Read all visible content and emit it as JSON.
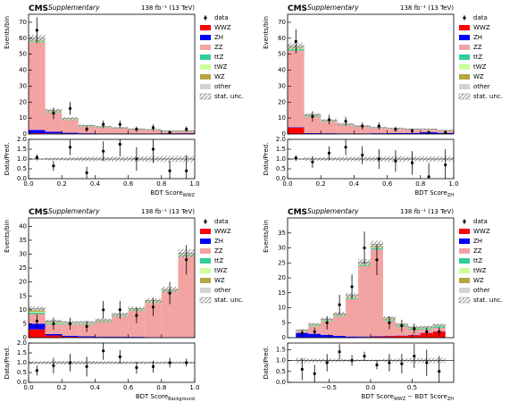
{
  "chart_data": [
    {
      "type": "histogram",
      "title": "CMS",
      "subtitle": "Supplementary",
      "lumi": "138 fb⁻¹ (13 TeV)",
      "xlabel": [
        "BDT Score",
        "WWZ"
      ],
      "ylabel": "Events/bin",
      "bins": [
        0,
        0.1,
        0.2,
        0.3,
        0.4,
        0.5,
        0.6,
        0.7,
        0.8,
        0.9,
        1.0
      ],
      "xlim": [
        0,
        1
      ],
      "xticks": [
        {
          "value": 0,
          "label": "0.0"
        },
        0.2,
        0.4,
        0.6,
        0.8,
        {
          "value": 1,
          "label": "1.0"
        }
      ],
      "ylim": [
        0,
        75
      ],
      "yticks": [
        0,
        10,
        20,
        30,
        40,
        50,
        60,
        70
      ],
      "series": [
        {
          "name": "WWZ",
          "color": "#ff0000",
          "values": [
            0.5,
            0.4,
            0.3,
            0.2,
            0.2,
            0.2,
            0.2,
            0.2,
            0.3,
            0.4
          ]
        },
        {
          "name": "ZH",
          "color": "#0000ff",
          "values": [
            2,
            1,
            0.5,
            0.3,
            0.2,
            0.2,
            0.2,
            0.2,
            0.2,
            0.2
          ]
        },
        {
          "name": "ZZ",
          "color": "#f4a3a3",
          "values": [
            55,
            12,
            8,
            4,
            3.5,
            3,
            2.3,
            2,
            1,
            1
          ]
        },
        {
          "name": "ttZ",
          "color": "#33cc99",
          "values": [
            0.5,
            0.3,
            0.2,
            0.2,
            0.2,
            0.1,
            0.1,
            0.1,
            0.1,
            0.1
          ]
        },
        {
          "name": "tWZ",
          "color": "#ccff99",
          "values": [
            0.3,
            0.2,
            0.1,
            0.1,
            0.1,
            0.1,
            0.1,
            0.1,
            0.1,
            0.1
          ]
        },
        {
          "name": "WZ",
          "color": "#b5a642",
          "values": [
            0.8,
            0.4,
            0.3,
            0.2,
            0.2,
            0.1,
            0.1,
            0.1,
            0.1,
            0.1
          ]
        },
        {
          "name": "other",
          "color": "#d3d3d3",
          "values": [
            1,
            0.6,
            0.4,
            0.3,
            0.2,
            0.2,
            0.1,
            0.1,
            0.1,
            0.1
          ]
        }
      ],
      "unc": {
        "name": "stat. unc.",
        "values": [
          2,
          1,
          0.8,
          0.6,
          0.5,
          0.5,
          0.4,
          0.4,
          0.3,
          0.3
        ]
      },
      "data": {
        "name": "data",
        "values": [
          65,
          13,
          16,
          3,
          6,
          6,
          3,
          4,
          1,
          3
        ],
        "errors": [
          8,
          3.6,
          4,
          1.7,
          2.4,
          2.4,
          1.7,
          2,
          1,
          1.7
        ]
      },
      "ratio": {
        "ylabel": "Data/Pred.",
        "ylim": [
          0,
          2
        ],
        "yticks": [
          {
            "value": 0,
            "label": "0.0"
          },
          0.5,
          {
            "value": 1,
            "label": "1.0"
          },
          1.5,
          {
            "value": 2,
            "label": "2.0"
          }
        ],
        "reference": 1,
        "values": [
          1.08,
          0.65,
          1.6,
          0.3,
          1.4,
          1.75,
          1.0,
          1.5,
          0.4,
          0.4
        ],
        "errors": [
          0.15,
          0.25,
          0.4,
          0.3,
          0.5,
          0.6,
          0.6,
          0.7,
          0.5,
          0.8
        ]
      }
    },
    {
      "type": "histogram",
      "title": "CMS",
      "subtitle": "Supplementary",
      "lumi": "138 fb⁻¹ (13 TeV)",
      "xlabel": [
        "BDT Score",
        "ZH"
      ],
      "ylabel": "Events/bin",
      "bins": [
        0,
        0.1,
        0.2,
        0.3,
        0.4,
        0.5,
        0.6,
        0.7,
        0.8,
        0.9,
        1.0
      ],
      "xlim": [
        0,
        1
      ],
      "xticks": [
        {
          "value": 0,
          "label": "0.0"
        },
        0.2,
        0.4,
        0.6,
        0.8,
        {
          "value": 1,
          "label": "1.0"
        }
      ],
      "ylim": [
        0,
        75
      ],
      "yticks": [
        0,
        10,
        20,
        30,
        40,
        50,
        60,
        70
      ],
      "series": [
        {
          "name": "WWZ",
          "color": "#ff0000",
          "values": [
            4,
            0.3,
            0.2,
            0.1,
            0.1,
            0.1,
            0.1,
            0.1,
            0.1,
            0.1
          ]
        },
        {
          "name": "ZH",
          "color": "#0000ff",
          "values": [
            0.3,
            0.3,
            0.3,
            0.3,
            0.3,
            0.4,
            0.5,
            0.6,
            1,
            0.6
          ]
        },
        {
          "name": "ZZ",
          "color": "#f4a3a3",
          "values": [
            48,
            10,
            7,
            5,
            4,
            3,
            2.5,
            2,
            1.5,
            1.2
          ]
        },
        {
          "name": "ttZ",
          "color": "#33cc99",
          "values": [
            0.8,
            0.3,
            0.2,
            0.2,
            0.1,
            0.1,
            0.1,
            0.1,
            0.1,
            0.1
          ]
        },
        {
          "name": "tWZ",
          "color": "#ccff99",
          "values": [
            0.5,
            0.2,
            0.1,
            0.1,
            0.1,
            0.1,
            0.1,
            0.1,
            0.1,
            0.1
          ]
        },
        {
          "name": "WZ",
          "color": "#b5a642",
          "values": [
            0.7,
            0.4,
            0.3,
            0.2,
            0.2,
            0.1,
            0.1,
            0.1,
            0.1,
            0.1
          ]
        },
        {
          "name": "other",
          "color": "#d3d3d3",
          "values": [
            0.9,
            0.5,
            0.4,
            0.3,
            0.2,
            0.2,
            0.1,
            0.1,
            0.1,
            0.1
          ]
        }
      ],
      "unc": {
        "name": "stat. unc.",
        "values": [
          2,
          1,
          0.8,
          0.7,
          0.6,
          0.5,
          0.5,
          0.4,
          0.4,
          0.3
        ]
      },
      "data": {
        "name": "data",
        "values": [
          58,
          11,
          9,
          8,
          5,
          5,
          3,
          2,
          1,
          1
        ],
        "errors": [
          7.6,
          3.3,
          3,
          2.8,
          2.2,
          2.2,
          1.7,
          1.4,
          1,
          1
        ]
      },
      "ratio": {
        "ylabel": "Data/Pred.",
        "ylim": [
          0,
          2
        ],
        "yticks": [
          {
            "value": 0,
            "label": "0.0"
          },
          0.5,
          {
            "value": 1,
            "label": "1.0"
          },
          1.5,
          {
            "value": 2,
            "label": "2.0"
          }
        ],
        "reference": 1,
        "values": [
          1.05,
          0.85,
          1.3,
          1.6,
          1.2,
          1.0,
          0.9,
          0.8,
          0.1,
          0.7
        ],
        "errors": [
          0.15,
          0.3,
          0.35,
          0.4,
          0.45,
          0.5,
          0.55,
          0.6,
          0.7,
          0.8
        ]
      }
    },
    {
      "type": "histogram",
      "title": "CMS",
      "subtitle": "Supplementary",
      "lumi": "138 fb⁻¹ (13 TeV)",
      "xlabel": [
        "BDT Score",
        "Background"
      ],
      "ylabel": "Events/bin",
      "bins": [
        0,
        0.1,
        0.2,
        0.3,
        0.4,
        0.5,
        0.6,
        0.7,
        0.8,
        0.9,
        1.0
      ],
      "xlim": [
        0,
        1
      ],
      "xticks": [
        {
          "value": 0,
          "label": "0.0"
        },
        0.2,
        0.4,
        0.6,
        0.8,
        {
          "value": 1,
          "label": "1.0"
        }
      ],
      "ylim": [
        0,
        43
      ],
      "yticks": [
        0,
        5,
        10,
        15,
        20,
        25,
        30,
        35,
        40
      ],
      "series": [
        {
          "name": "WWZ",
          "color": "#ff0000",
          "values": [
            3,
            0.8,
            0.3,
            0.2,
            0.2,
            0.2,
            0.1,
            0.1,
            0.1,
            0.1
          ]
        },
        {
          "name": "ZH",
          "color": "#0000ff",
          "values": [
            2,
            0.5,
            0.4,
            0.3,
            0.2,
            0.2,
            0.2,
            0.1,
            0.1,
            0.1
          ]
        },
        {
          "name": "ZZ",
          "color": "#f4a3a3",
          "values": [
            3.5,
            3.5,
            4,
            4.2,
            5.2,
            7.2,
            9.3,
            12.3,
            16.3,
            29
          ]
        },
        {
          "name": "ttZ",
          "color": "#33cc99",
          "values": [
            0.5,
            0.3,
            0.2,
            0.2,
            0.2,
            0.2,
            0.2,
            0.2,
            0.2,
            0.3
          ]
        },
        {
          "name": "tWZ",
          "color": "#ccff99",
          "values": [
            0.3,
            0.2,
            0.1,
            0.1,
            0.1,
            0.1,
            0.1,
            0.1,
            0.1,
            0.1
          ]
        },
        {
          "name": "WZ",
          "color": "#b5a642",
          "values": [
            0.5,
            0.3,
            0.2,
            0.2,
            0.2,
            0.2,
            0.2,
            0.2,
            0.2,
            0.3
          ]
        },
        {
          "name": "other",
          "color": "#d3d3d3",
          "values": [
            0.6,
            0.4,
            0.3,
            0.3,
            0.3,
            0.3,
            0.3,
            0.3,
            0.3,
            0.4
          ]
        }
      ],
      "unc": {
        "name": "stat. unc.",
        "values": [
          0.8,
          0.5,
          0.5,
          0.5,
          0.5,
          0.6,
          0.7,
          0.8,
          1,
          1.5
        ]
      },
      "data": {
        "name": "data",
        "values": [
          6,
          5,
          5,
          4,
          10,
          10,
          8,
          11,
          16,
          28
        ],
        "errors": [
          2.4,
          2.2,
          2.2,
          2,
          3.2,
          3.2,
          2.8,
          3.3,
          4,
          5.3
        ]
      },
      "ratio": {
        "ylabel": "Data/Pred.",
        "ylim": [
          0,
          2
        ],
        "yticks": [
          {
            "value": 0,
            "label": "0.0"
          },
          0.5,
          {
            "value": 1,
            "label": "1.0"
          },
          1.5,
          {
            "value": 2,
            "label": "2.0"
          }
        ],
        "reference": 1,
        "values": [
          0.6,
          0.85,
          1.0,
          0.8,
          1.6,
          1.3,
          0.75,
          0.8,
          1.0,
          1.0
        ],
        "errors": [
          0.25,
          0.4,
          0.45,
          0.5,
          0.45,
          0.35,
          0.3,
          0.3,
          0.25,
          0.2
        ]
      }
    },
    {
      "type": "histogram",
      "title": "CMS",
      "subtitle": "Supplementary",
      "lumi": "138 fb⁻¹ (13 TeV)",
      "xlabel": [
        "BDT Score",
        "WWZ",
        " − BDT Score",
        "ZH"
      ],
      "ylabel": "Events/bin",
      "bins": [
        -0.9,
        -0.75,
        -0.6,
        -0.45,
        -0.3,
        -0.15,
        0,
        0.15,
        0.3,
        0.45,
        0.6,
        0.75,
        0.9
      ],
      "xlim": [
        -1,
        1
      ],
      "xticks": [
        {
          "value": -0.5,
          "label": "−0.5"
        },
        {
          "value": 0,
          "label": "0.0"
        },
        0.5
      ],
      "ylim": [
        0,
        40
      ],
      "yticks": [
        0,
        5,
        10,
        15,
        20,
        25,
        30,
        35
      ],
      "series": [
        {
          "name": "WWZ",
          "color": "#ff0000",
          "values": [
            0.1,
            0.1,
            0.1,
            0.1,
            0.1,
            0.2,
            0.3,
            0.5,
            0.6,
            0.8,
            1.5,
            2
          ]
        },
        {
          "name": "ZH",
          "color": "#0000ff",
          "values": [
            1.5,
            1.2,
            0.8,
            0.5,
            0.3,
            0.2,
            0.2,
            0.1,
            0.1,
            0.1,
            0.1,
            0.1
          ]
        },
        {
          "name": "ZZ",
          "color": "#f4a3a3",
          "values": [
            0.5,
            2.5,
            4.5,
            6.5,
            12.5,
            23.5,
            29,
            5,
            3,
            1.8,
            1.2,
            1.2
          ]
        },
        {
          "name": "ttZ",
          "color": "#33cc99",
          "values": [
            0.1,
            0.2,
            0.2,
            0.2,
            0.3,
            0.3,
            0.4,
            0.3,
            0.3,
            0.3,
            0.3,
            0.4
          ]
        },
        {
          "name": "tWZ",
          "color": "#ccff99",
          "values": [
            0.1,
            0.1,
            0.1,
            0.1,
            0.2,
            0.2,
            0.2,
            0.1,
            0.1,
            0.1,
            0.1,
            0.1
          ]
        },
        {
          "name": "WZ",
          "color": "#b5a642",
          "values": [
            0.1,
            0.2,
            0.2,
            0.3,
            0.3,
            0.4,
            0.5,
            0.3,
            0.2,
            0.2,
            0.2,
            0.2
          ]
        },
        {
          "name": "other",
          "color": "#d3d3d3",
          "values": [
            0.1,
            0.2,
            0.3,
            0.3,
            0.4,
            0.5,
            0.6,
            0.3,
            0.2,
            0.2,
            0.2,
            0.2
          ]
        }
      ],
      "unc": {
        "name": "stat. unc.",
        "values": [
          0.3,
          0.4,
          0.5,
          0.6,
          0.8,
          1,
          1.2,
          0.5,
          0.4,
          0.4,
          0.4,
          0.5
        ]
      },
      "data": {
        "name": "data",
        "values": [
          1.5,
          2,
          5,
          11,
          17,
          30,
          26,
          5,
          4,
          3,
          2,
          2
        ],
        "errors": [
          1.2,
          1.4,
          2.2,
          3.3,
          4.1,
          5.5,
          5.1,
          2.2,
          2,
          1.7,
          1.4,
          1.4
        ]
      },
      "ratio": {
        "ylabel": "Data/Pred.",
        "ylim": [
          0,
          1.8
        ],
        "yticks": [
          {
            "value": 0,
            "label": "0.0"
          },
          0.5,
          {
            "value": 1,
            "label": "1.0"
          },
          1.5
        ],
        "reference": 1,
        "values": [
          0.6,
          0.4,
          0.9,
          1.4,
          1.0,
          1.2,
          0.8,
          0.9,
          0.85,
          1.2,
          0.9,
          0.5
        ],
        "errors": [
          0.5,
          0.4,
          0.4,
          0.35,
          0.25,
          0.2,
          0.2,
          0.4,
          0.45,
          0.55,
          0.6,
          0.7
        ]
      }
    }
  ]
}
